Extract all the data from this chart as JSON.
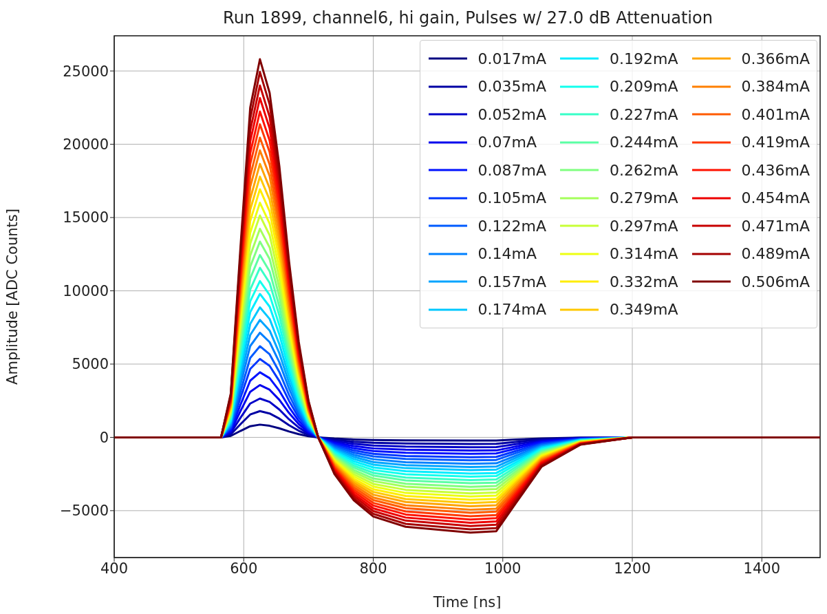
{
  "chart_data": {
    "type": "line",
    "title": "Run 1899, channel6, hi gain, Pulses w/ 27.0 dB Attenuation",
    "xlabel": "Time [ns]",
    "ylabel": "Amplitude [ADC Counts]",
    "x": [
      400,
      565,
      580,
      595,
      610,
      625,
      640,
      655,
      670,
      685,
      700,
      715,
      740,
      770,
      800,
      850,
      950,
      990,
      1020,
      1060,
      1120,
      1200,
      1490
    ],
    "xlim": [
      400,
      1490
    ],
    "xticks": [
      400,
      600,
      800,
      1000,
      1200,
      1400
    ],
    "ylim": [
      -8200,
      27400
    ],
    "yticks": [
      {
        "value": -5000,
        "label": "−5000"
      },
      0,
      5000,
      10000,
      15000,
      20000,
      25000
    ],
    "grid": true,
    "legend": "top right",
    "series": [
      {
        "name": "0.017mA",
        "color": "#000080",
        "values": [
          0,
          0,
          100,
          440,
          760,
          870,
          790,
          620,
          400,
          220,
          80,
          0,
          -80,
          -140,
          -180,
          -200,
          -220,
          -220,
          -150,
          -70,
          -20,
          0,
          0
        ]
      },
      {
        "name": "0.035mA",
        "color": "#0000a4",
        "values": [
          0,
          0,
          210,
          900,
          1560,
          1790,
          1630,
          1280,
          830,
          450,
          170,
          0,
          -170,
          -300,
          -370,
          -420,
          -450,
          -440,
          -310,
          -140,
          -30,
          0,
          0
        ]
      },
      {
        "name": "0.052mA",
        "color": "#0000c8",
        "values": [
          0,
          0,
          310,
          1340,
          2310,
          2650,
          2420,
          1900,
          1230,
          670,
          260,
          0,
          -260,
          -440,
          -560,
          -630,
          -670,
          -660,
          -460,
          -210,
          -50,
          0,
          0
        ]
      },
      {
        "name": "0.07mA",
        "color": "#0000ed",
        "values": [
          0,
          0,
          410,
          1800,
          3110,
          3570,
          3250,
          2560,
          1660,
          900,
          350,
          0,
          -350,
          -590,
          -750,
          -840,
          -900,
          -890,
          -620,
          -280,
          -70,
          0,
          0
        ]
      },
      {
        "name": "0.087mA",
        "color": "#0012ff",
        "values": [
          0,
          0,
          520,
          2230,
          3870,
          4440,
          4040,
          3180,
          2060,
          1120,
          430,
          0,
          -430,
          -740,
          -930,
          -1050,
          -1120,
          -1100,
          -770,
          -340,
          -90,
          0,
          0
        ]
      },
      {
        "name": "0.105mA",
        "color": "#0037ff",
        "values": [
          0,
          0,
          620,
          2700,
          4670,
          5350,
          4880,
          3840,
          2490,
          1350,
          520,
          0,
          -520,
          -890,
          -1120,
          -1270,
          -1350,
          -1330,
          -930,
          -420,
          -100,
          0,
          0
        ]
      },
      {
        "name": "0.122mA",
        "color": "#005bff",
        "values": [
          0,
          0,
          720,
          3130,
          5420,
          6220,
          5670,
          4460,
          2890,
          1570,
          600,
          0,
          -600,
          -1040,
          -1300,
          -1470,
          -1570,
          -1540,
          -1080,
          -480,
          -120,
          0,
          0
        ]
      },
      {
        "name": "0.14mA",
        "color": "#0080ff",
        "values": [
          0,
          0,
          830,
          3600,
          6230,
          7140,
          6500,
          5120,
          3320,
          1800,
          690,
          0,
          -690,
          -1190,
          -1490,
          -1690,
          -1800,
          -1770,
          -1250,
          -550,
          -140,
          0,
          0
        ]
      },
      {
        "name": "0.157mA",
        "color": "#00a4ff",
        "values": [
          0,
          0,
          930,
          4030,
          6980,
          8010,
          7290,
          5740,
          3720,
          2020,
          780,
          0,
          -780,
          -1330,
          -1680,
          -1890,
          -2020,
          -1990,
          -1400,
          -620,
          -160,
          0,
          0
        ]
      },
      {
        "name": "0.174mA",
        "color": "#00c8ff",
        "values": [
          0,
          0,
          1030,
          4470,
          7740,
          8870,
          8080,
          6360,
          4130,
          2240,
          860,
          0,
          -860,
          -1480,
          -1860,
          -2100,
          -2240,
          -2200,
          -1550,
          -690,
          -170,
          0,
          0
        ]
      },
      {
        "name": "0.192mA",
        "color": "#00edff",
        "values": [
          0,
          0,
          1140,
          4930,
          8540,
          9790,
          8920,
          7020,
          4550,
          2470,
          950,
          0,
          -950,
          -1630,
          -2050,
          -2310,
          -2470,
          -2430,
          -1710,
          -760,
          -190,
          0,
          0
        ]
      },
      {
        "name": "0.209mA",
        "color": "#12ffed",
        "values": [
          0,
          0,
          1240,
          5370,
          9290,
          10660,
          9710,
          7640,
          4960,
          2680,
          1030,
          0,
          -1030,
          -1780,
          -2230,
          -2520,
          -2680,
          -2640,
          -1860,
          -830,
          -210,
          0,
          0
        ]
      },
      {
        "name": "0.227mA",
        "color": "#37ffc8",
        "values": [
          0,
          0,
          1350,
          5830,
          10090,
          11570,
          10540,
          8300,
          5380,
          2920,
          1120,
          0,
          -1120,
          -1930,
          -2420,
          -2740,
          -2920,
          -2870,
          -2020,
          -900,
          -220,
          0,
          0
        ]
      },
      {
        "name": "0.244mA",
        "color": "#5bffa4",
        "values": [
          0,
          0,
          1450,
          6270,
          10850,
          12440,
          11330,
          8920,
          5790,
          3130,
          1210,
          0,
          -1210,
          -2070,
          -2600,
          -2940,
          -3130,
          -3090,
          -2170,
          -960,
          -240,
          0,
          0
        ]
      },
      {
        "name": "0.262mA",
        "color": "#80ff80",
        "values": [
          0,
          0,
          1550,
          6730,
          11650,
          13360,
          12170,
          9580,
          6210,
          3370,
          1290,
          0,
          -1290,
          -2230,
          -2800,
          -3160,
          -3370,
          -3310,
          -2330,
          -1040,
          -260,
          0,
          0
        ]
      },
      {
        "name": "0.279mA",
        "color": "#a4ff5b",
        "values": [
          0,
          0,
          1650,
          7170,
          12410,
          14230,
          12960,
          10200,
          6620,
          3580,
          1380,
          0,
          -1380,
          -2370,
          -2980,
          -3360,
          -3580,
          -3530,
          -2480,
          -1100,
          -280,
          0,
          0
        ]
      },
      {
        "name": "0.297mA",
        "color": "#c8ff37",
        "values": [
          0,
          0,
          1760,
          7630,
          13210,
          15140,
          13790,
          10860,
          7040,
          3820,
          1470,
          0,
          -1470,
          -2520,
          -3170,
          -3580,
          -3820,
          -3760,
          -2640,
          -1170,
          -290,
          0,
          0
        ]
      },
      {
        "name": "0.314mA",
        "color": "#edff12",
        "values": [
          0,
          0,
          1860,
          8070,
          13960,
          16010,
          14580,
          11480,
          7450,
          4030,
          1550,
          0,
          -1550,
          -2670,
          -3350,
          -3790,
          -4030,
          -3970,
          -2790,
          -1240,
          -310,
          0,
          0
        ]
      },
      {
        "name": "0.332mA",
        "color": "#ffed00",
        "values": [
          0,
          0,
          1970,
          8530,
          14760,
          16930,
          15420,
          12140,
          7870,
          4260,
          1640,
          0,
          -1640,
          -2820,
          -3540,
          -4000,
          -4260,
          -4200,
          -2950,
          -1310,
          -330,
          0,
          0
        ]
      },
      {
        "name": "0.349mA",
        "color": "#ffc800",
        "values": [
          0,
          0,
          2070,
          8970,
          15520,
          17790,
          16210,
          12760,
          8280,
          4480,
          1720,
          0,
          -1720,
          -2970,
          -3720,
          -4210,
          -4480,
          -4410,
          -3100,
          -1380,
          -340,
          0,
          0
        ]
      },
      {
        "name": "0.366mA",
        "color": "#ffa400",
        "values": [
          0,
          0,
          2170,
          9400,
          16270,
          18660,
          17000,
          13380,
          8680,
          4700,
          1810,
          0,
          -1810,
          -3110,
          -3910,
          -4410,
          -4700,
          -4630,
          -3250,
          -1450,
          -360,
          0,
          0
        ]
      },
      {
        "name": "0.384mA",
        "color": "#ff8000",
        "values": [
          0,
          0,
          2280,
          9870,
          17080,
          19580,
          17830,
          14040,
          9110,
          4930,
          1900,
          0,
          -1900,
          -3260,
          -4100,
          -4630,
          -4930,
          -4860,
          -3420,
          -1520,
          -380,
          0,
          0
        ]
      },
      {
        "name": "0.401mA",
        "color": "#ff5b00",
        "values": [
          0,
          0,
          2380,
          10300,
          17830,
          20450,
          18620,
          14660,
          9510,
          5150,
          1980,
          0,
          -1980,
          -3410,
          -4280,
          -4830,
          -5150,
          -5070,
          -3570,
          -1590,
          -400,
          0,
          0
        ]
      },
      {
        "name": "0.419mA",
        "color": "#ff3700",
        "values": [
          0,
          0,
          2480,
          10770,
          18630,
          21360,
          19460,
          15320,
          9940,
          5380,
          2070,
          0,
          -2070,
          -3560,
          -4470,
          -5050,
          -5380,
          -5300,
          -3730,
          -1660,
          -410,
          0,
          0
        ]
      },
      {
        "name": "0.436mA",
        "color": "#ff1200",
        "values": [
          0,
          0,
          2590,
          11200,
          19390,
          22230,
          20250,
          15940,
          10340,
          5600,
          2150,
          0,
          -2150,
          -3710,
          -4650,
          -5260,
          -5600,
          -5510,
          -3880,
          -1720,
          -430,
          0,
          0
        ]
      },
      {
        "name": "0.454mA",
        "color": "#ed0000",
        "values": [
          0,
          0,
          2690,
          11660,
          20190,
          23150,
          21080,
          16600,
          10770,
          5830,
          2240,
          0,
          -2240,
          -3860,
          -4840,
          -5470,
          -5830,
          -5740,
          -4040,
          -1790,
          -450,
          0,
          0
        ]
      },
      {
        "name": "0.471mA",
        "color": "#c80000",
        "values": [
          0,
          0,
          2790,
          12100,
          20940,
          24010,
          21870,
          17220,
          11170,
          6050,
          2330,
          0,
          -2330,
          -4000,
          -5030,
          -5680,
          -6050,
          -5960,
          -4190,
          -1860,
          -470,
          0,
          0
        ]
      },
      {
        "name": "0.489mA",
        "color": "#a40000",
        "values": [
          0,
          0,
          2900,
          12560,
          21740,
          24930,
          22710,
          17880,
          11600,
          6280,
          2420,
          0,
          -2420,
          -4160,
          -5220,
          -5900,
          -6280,
          -6190,
          -4350,
          -1930,
          -480,
          0,
          0
        ]
      },
      {
        "name": "0.506mA",
        "color": "#800000",
        "values": [
          0,
          0,
          3000,
          13000,
          22500,
          25800,
          23500,
          18500,
          12000,
          6500,
          2500,
          0,
          -2500,
          -4300,
          -5400,
          -6100,
          -6500,
          -6400,
          -4500,
          -2000,
          -500,
          0,
          0
        ]
      }
    ]
  }
}
